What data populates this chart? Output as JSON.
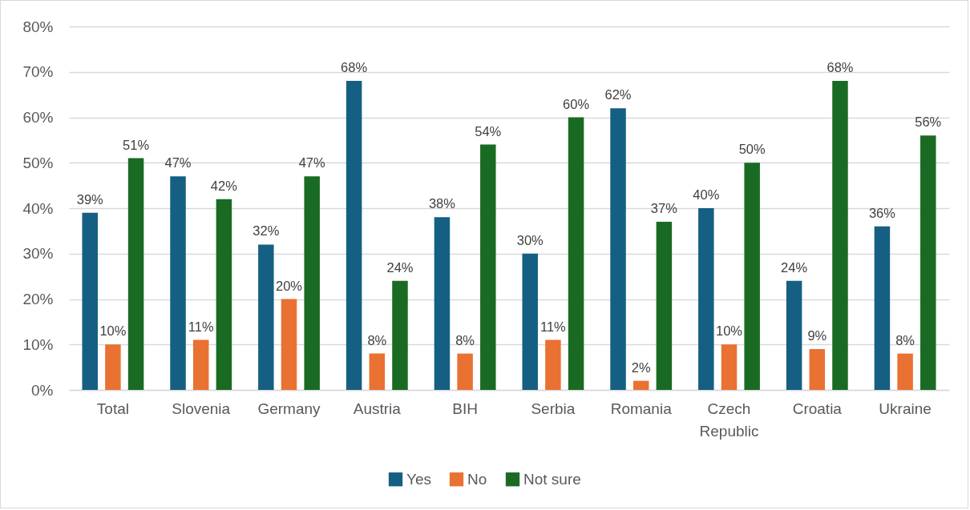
{
  "chart_data": {
    "type": "bar",
    "categories": [
      "Total",
      "Slovenia",
      "Germany",
      "Austria",
      "BIH",
      "Serbia",
      "Romania",
      "Czech Republic",
      "Croatia",
      "Ukraine"
    ],
    "series": [
      {
        "name": "Yes",
        "color": "#156082",
        "values": [
          39,
          47,
          32,
          68,
          38,
          30,
          62,
          40,
          24,
          36
        ],
        "value_labels": [
          "39%",
          "47%",
          "32%",
          "68%",
          "38%",
          "30%",
          "62%",
          "40%",
          "24%",
          "36%"
        ]
      },
      {
        "name": "No",
        "color": "#e97132",
        "values": [
          10,
          11,
          20,
          8,
          8,
          11,
          2,
          10,
          9,
          8
        ],
        "value_labels": [
          "10%",
          "11%",
          "20%",
          "8%",
          "8%",
          "11%",
          "2%",
          "10%",
          "9%",
          "8%"
        ]
      },
      {
        "name": "Not sure",
        "color": "#196b24",
        "values": [
          51,
          42,
          47,
          24,
          54,
          60,
          37,
          50,
          68,
          56
        ],
        "value_labels": [
          "51%",
          "42%",
          "47%",
          "24%",
          "54%",
          "60%",
          "37%",
          "50%",
          "68%",
          "56%"
        ]
      }
    ],
    "ylim": [
      0,
      80
    ],
    "yticks": [
      {
        "value": 0,
        "label": "0%"
      },
      {
        "value": 10,
        "label": "10%"
      },
      {
        "value": 20,
        "label": "20%"
      },
      {
        "value": 30,
        "label": "30%"
      },
      {
        "value": 40,
        "label": "40%"
      },
      {
        "value": 50,
        "label": "50%"
      },
      {
        "value": 60,
        "label": "60%"
      },
      {
        "value": 70,
        "label": "70%"
      },
      {
        "value": 80,
        "label": "80%"
      }
    ],
    "grid": "y",
    "legend": "bottom"
  }
}
